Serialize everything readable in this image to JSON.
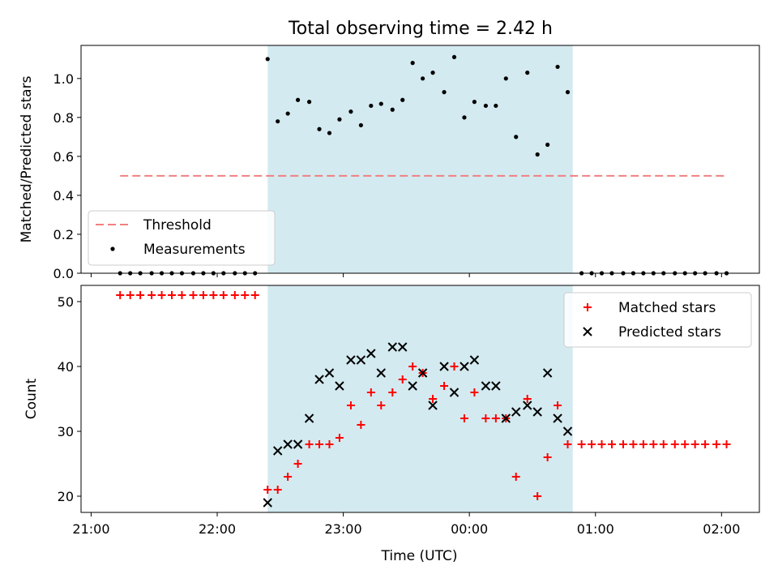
{
  "figure": {
    "title": "Total observing time = 2.42 h"
  },
  "colors": {
    "shade": "#d3eaf0",
    "threshold": "#f08080",
    "matched": "#ff0000",
    "predicted": "#000000"
  },
  "chart_data": [
    {
      "type": "scatter",
      "title": "Total observing time = 2.42 h",
      "ylabel": "Matched/Predicted stars",
      "xlabel": "",
      "x_unit": "hours since 21:00 UTC",
      "xlim": [
        -0.08,
        5.3
      ],
      "ylim": [
        0,
        1.17
      ],
      "y_ticks": [
        0.0,
        0.2,
        0.4,
        0.6,
        0.8,
        1.0
      ],
      "y_tick_labels": [
        "0.0",
        "0.2",
        "0.4",
        "0.6",
        "0.8",
        "1.0"
      ],
      "shaded_interval": [
        1.4,
        3.82
      ],
      "legend": {
        "placement": "lower-left",
        "entries": [
          "Threshold",
          "Measurements"
        ]
      },
      "threshold": {
        "name": "Threshold",
        "y": 0.5,
        "x": [
          0.23,
          5.03
        ]
      },
      "series": [
        {
          "name": "Measurements",
          "x": [
            0.23,
            0.31,
            0.39,
            0.48,
            0.56,
            0.64,
            0.72,
            0.81,
            0.89,
            0.97,
            1.05,
            1.14,
            1.22,
            1.3,
            1.4,
            1.48,
            1.56,
            1.64,
            1.73,
            1.81,
            1.89,
            1.97,
            2.06,
            2.14,
            2.22,
            2.3,
            2.39,
            2.47,
            2.55,
            2.63,
            2.71,
            2.8,
            2.88,
            2.96,
            3.04,
            3.13,
            3.21,
            3.29,
            3.37,
            3.46,
            3.54,
            3.62,
            3.7,
            3.78,
            3.89,
            3.97,
            4.05,
            4.13,
            4.22,
            4.3,
            4.38,
            4.46,
            4.54,
            4.63,
            4.71,
            4.79,
            4.87,
            4.96,
            5.04
          ],
          "y": [
            0,
            0,
            0,
            0,
            0,
            0,
            0,
            0,
            0,
            0,
            0,
            0,
            0,
            0,
            1.1,
            0.78,
            0.82,
            0.89,
            0.88,
            0.74,
            0.72,
            0.79,
            0.83,
            0.76,
            0.86,
            0.87,
            0.84,
            0.89,
            1.08,
            1.0,
            1.03,
            0.93,
            1.11,
            0.8,
            0.88,
            0.86,
            0.86,
            1.0,
            0.7,
            1.03,
            0.61,
            0.66,
            1.06,
            0.93,
            0,
            0,
            0,
            0,
            0,
            0,
            0,
            0,
            0,
            0,
            0,
            0,
            0,
            0,
            0
          ]
        }
      ]
    },
    {
      "type": "scatter",
      "title": "",
      "ylabel": "Count",
      "xlabel": "Time (UTC)",
      "x_unit": "hours since 21:00 UTC",
      "xlim": [
        -0.08,
        5.3
      ],
      "ylim": [
        17.5,
        52.5
      ],
      "y_ticks": [
        20,
        30,
        40,
        50
      ],
      "y_tick_labels": [
        "20",
        "30",
        "40",
        "50"
      ],
      "x_ticks": [
        0,
        1,
        2,
        3,
        4,
        5
      ],
      "x_tick_labels": [
        "21:00",
        "22:00",
        "23:00",
        "00:00",
        "01:00",
        "02:00"
      ],
      "shaded_interval": [
        1.4,
        3.82
      ],
      "legend": {
        "placement": "top-right",
        "entries": [
          "Matched stars",
          "Predicted stars"
        ]
      },
      "series": [
        {
          "name": "Matched stars",
          "x": [
            0.23,
            0.31,
            0.39,
            0.48,
            0.56,
            0.64,
            0.72,
            0.81,
            0.89,
            0.97,
            1.05,
            1.14,
            1.22,
            1.3,
            1.4,
            1.48,
            1.56,
            1.64,
            1.73,
            1.81,
            1.89,
            1.97,
            2.06,
            2.14,
            2.22,
            2.3,
            2.39,
            2.47,
            2.55,
            2.63,
            2.71,
            2.8,
            2.88,
            2.96,
            3.04,
            3.13,
            3.21,
            3.29,
            3.37,
            3.46,
            3.54,
            3.62,
            3.7,
            3.78,
            3.89,
            3.97,
            4.05,
            4.13,
            4.22,
            4.3,
            4.38,
            4.46,
            4.54,
            4.63,
            4.71,
            4.79,
            4.87,
            4.96,
            5.04
          ],
          "y": [
            51,
            51,
            51,
            51,
            51,
            51,
            51,
            51,
            51,
            51,
            51,
            51,
            51,
            51,
            21,
            21,
            23,
            25,
            28,
            28,
            28,
            29,
            34,
            31,
            36,
            34,
            36,
            38,
            40,
            39,
            35,
            37,
            40,
            32,
            36,
            32,
            32,
            32,
            23,
            35,
            20,
            26,
            34,
            28,
            28,
            28,
            28,
            28,
            28,
            28,
            28,
            28,
            28,
            28,
            28,
            28,
            28,
            28,
            28
          ]
        },
        {
          "name": "Predicted stars",
          "x": [
            1.4,
            1.48,
            1.56,
            1.64,
            1.73,
            1.81,
            1.89,
            1.97,
            2.06,
            2.14,
            2.22,
            2.3,
            2.39,
            2.47,
            2.55,
            2.63,
            2.71,
            2.8,
            2.88,
            2.96,
            3.04,
            3.13,
            3.21,
            3.29,
            3.37,
            3.46,
            3.54,
            3.62,
            3.7,
            3.78
          ],
          "y": [
            19,
            27,
            28,
            28,
            32,
            38,
            39,
            37,
            41,
            41,
            42,
            39,
            43,
            43,
            37,
            39,
            34,
            40,
            36,
            40,
            41,
            37,
            37,
            32,
            33,
            34,
            33,
            39,
            32,
            30
          ]
        }
      ]
    }
  ]
}
